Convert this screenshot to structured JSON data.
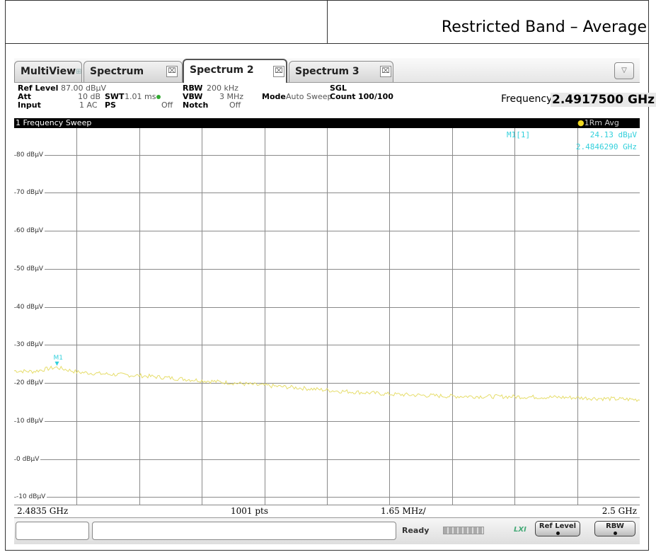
{
  "report": {
    "title": "Restricted Band – Average"
  },
  "tabs": [
    {
      "label": "MultiView"
    },
    {
      "label": "Spectrum"
    },
    {
      "label": "Spectrum 2"
    },
    {
      "label": "Spectrum 3"
    }
  ],
  "settings": {
    "ref_level_label": "Ref Level",
    "ref_level_value": "87.00 dBµV",
    "att_label": "Att",
    "att_value": "10 dB",
    "input_label": "Input",
    "input_value": "1 AC",
    "swt_label": "SWT",
    "swt_value": "1.01 ms",
    "ps_label": "PS",
    "ps_value": "Off",
    "rbw_label": "RBW",
    "rbw_value": "200 kHz",
    "vbw_label": "VBW",
    "vbw_value": "3 MHz",
    "notch_label": "Notch",
    "notch_value": "Off",
    "mode_label": "Mode",
    "mode_value": "Auto Sweep",
    "sgl_label": "SGL",
    "count_label": "Count",
    "count_value": "100/100",
    "frequency_label": "Frequency",
    "frequency_value": "2.4917500 GHz"
  },
  "plot": {
    "title": "1 Frequency Sweep",
    "trace_label": "1Rm Avg",
    "marker_label": "M1[1]",
    "marker_level": "24.13 dBµV",
    "marker_freq": "2.4846290 GHz",
    "marker_tag": "M1"
  },
  "chart_data": {
    "type": "line",
    "y_tick_labels": [
      "80 dBµV",
      "70 dBµV",
      "60 dBµV",
      "50 dBµV",
      "40 dBµV",
      "30 dBµV",
      "20 dBµV",
      "10 dBµV",
      "0 dBµV",
      "-10 dBµV"
    ],
    "y_ticks": [
      80,
      70,
      60,
      50,
      40,
      30,
      20,
      10,
      0,
      -10
    ],
    "ylim": [
      -12,
      87
    ],
    "xlim": [
      2.4835,
      2.5
    ],
    "x_start_label": "2.4835 GHz",
    "x_points_label": "1001 pts",
    "x_div_label": "1.65 MHz/",
    "x_stop_label": "2.5 GHz",
    "x_divisions": 10,
    "y_divisions": 10,
    "grid": true,
    "trace_color": "#e6dd6a",
    "marker_color": "#33d0dc",
    "series": [
      {
        "x": [
          2.4835,
          2.484,
          2.4846,
          2.4852,
          2.486,
          2.487,
          2.488,
          2.489,
          2.49,
          2.491,
          2.492,
          2.4935,
          2.495,
          2.4965,
          2.498,
          2.499,
          2.5
        ],
        "y": [
          23.2,
          23.0,
          24.1,
          22.8,
          22.3,
          21.8,
          21.0,
          20.2,
          19.4,
          18.7,
          17.9,
          17.0,
          16.5,
          16.4,
          16.2,
          15.9,
          15.6
        ]
      }
    ],
    "marker": {
      "x": 2.484629,
      "y": 24.13
    }
  },
  "status": {
    "ready": "Ready",
    "lxi": "LXI",
    "softkey_ref_level": "Ref Level",
    "softkey_rbw": "RBW"
  },
  "colors": {
    "grid": "#8a8a8a",
    "title_bar": "#000000",
    "marker_text": "#33d0dc"
  }
}
